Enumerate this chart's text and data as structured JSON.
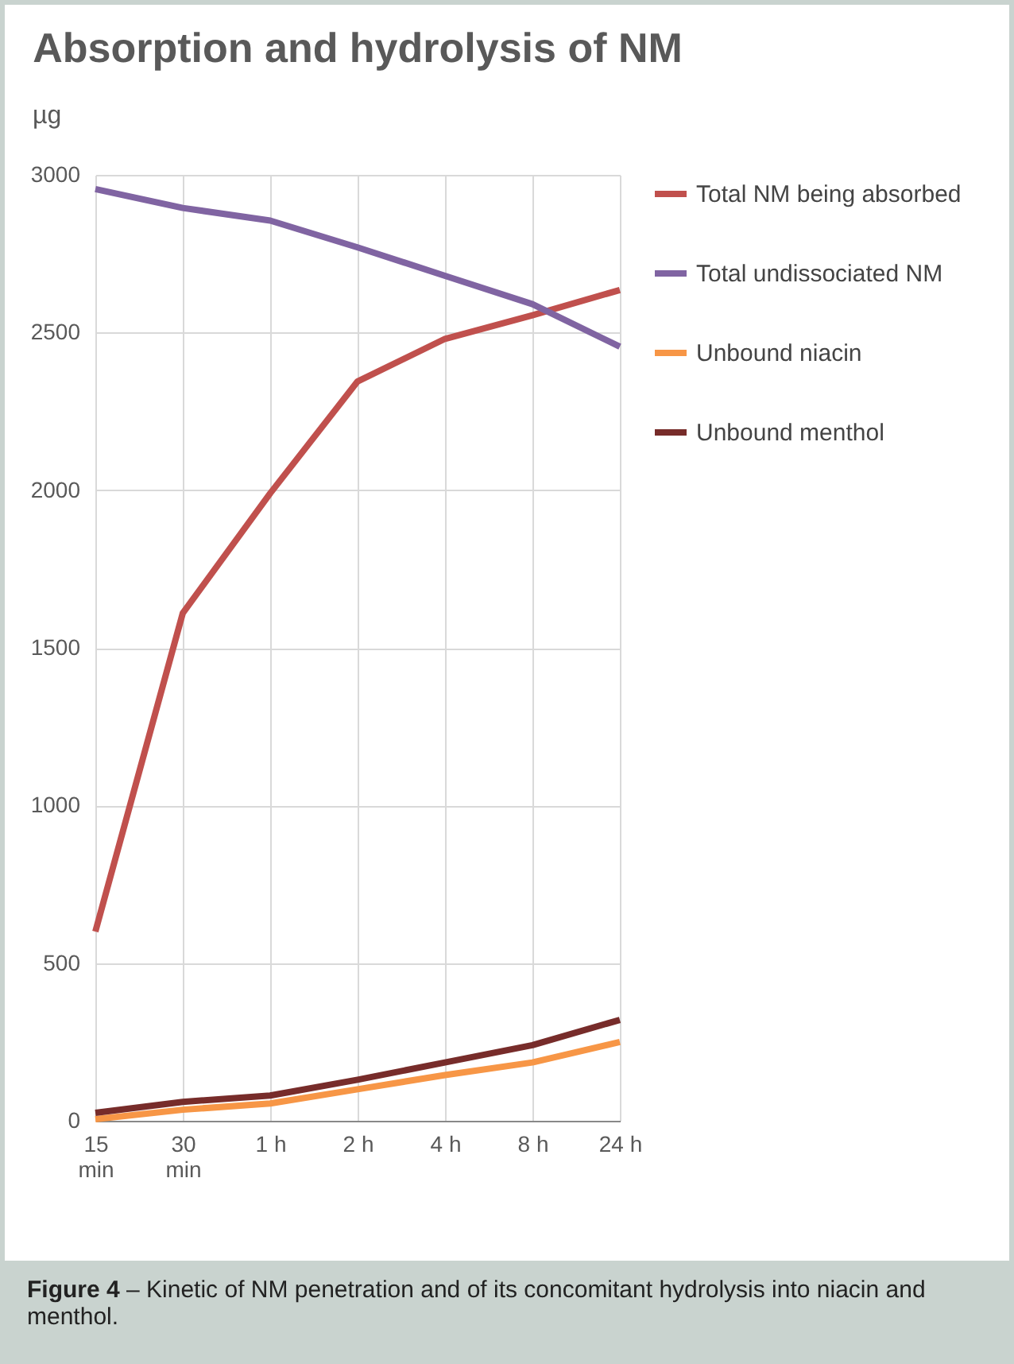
{
  "chart_data": {
    "type": "line",
    "title": "Absorption and hydrolysis of NM",
    "ylabel": "µg",
    "categories": [
      "15 min",
      "30 min",
      "1 h",
      "2 h",
      "4 h",
      "8 h",
      "24 h"
    ],
    "series": [
      {
        "name": "Total NM being absorbed",
        "color": "#c0504d",
        "values": [
          600,
          1610,
          1990,
          2345,
          2480,
          2555,
          2635
        ]
      },
      {
        "name": "Total undissociated NM",
        "color": "#8064a2",
        "values": [
          2955,
          2895,
          2855,
          2770,
          2680,
          2590,
          2455
        ]
      },
      {
        "name": "Unbound niacin",
        "color": "#f79646",
        "values": [
          5,
          35,
          55,
          100,
          145,
          185,
          250
        ]
      },
      {
        "name": "Unbound menthol",
        "color": "#772c2a",
        "values": [
          25,
          60,
          80,
          130,
          185,
          240,
          320
        ]
      }
    ],
    "ylim": [
      0,
      3000
    ],
    "yticks": [
      0,
      500,
      1000,
      1500,
      2000,
      2500,
      3000
    ],
    "grid": true,
    "legend": "right",
    "marker": "none",
    "line_style": "solid",
    "annotations": [
      "Figure 4 – Kinetic of NM penetration and of its concomitant hydrolysis into niacin and menthol."
    ]
  }
}
